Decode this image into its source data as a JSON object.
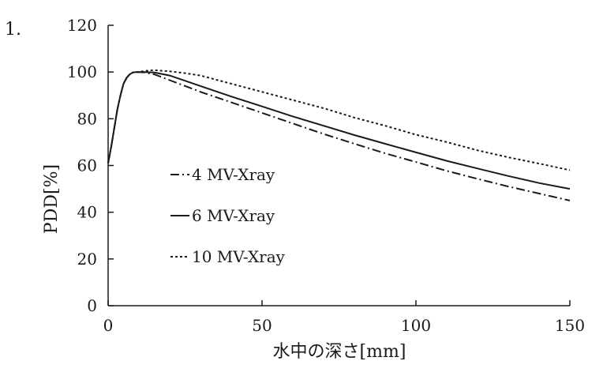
{
  "figure_number": "1.",
  "chart_data": {
    "type": "line",
    "xlabel": "水中の深さ[mm]",
    "ylabel": "PDD[%]",
    "xlim": [
      0,
      150
    ],
    "ylim": [
      0,
      120
    ],
    "xticks": [
      0,
      50,
      100,
      150
    ],
    "yticks": [
      0,
      20,
      40,
      60,
      80,
      100,
      120
    ],
    "grid": false,
    "legend_position": "left, inside plot",
    "series": [
      {
        "name": "4 MV-Xray",
        "style": "dash-dot",
        "color": "#1a1a1a",
        "x": [
          0,
          1,
          2,
          3,
          4,
          5,
          6,
          7,
          8,
          9,
          10,
          12,
          15,
          20,
          30,
          40,
          50,
          60,
          70,
          80,
          90,
          100,
          110,
          120,
          130,
          140,
          150
        ],
        "y": [
          61,
          68,
          76,
          84,
          90,
          95,
          97.5,
          99,
          99.8,
          100,
          100,
          99.8,
          99,
          96.5,
          91.5,
          87,
          82.5,
          78,
          73.5,
          69.3,
          65.2,
          61.5,
          57.7,
          54.3,
          51,
          48,
          45
        ]
      },
      {
        "name": "6 MV-Xray",
        "style": "solid",
        "color": "#1a1a1a",
        "x": [
          0,
          1,
          2,
          3,
          4,
          5,
          6,
          7,
          8,
          9,
          10,
          12,
          15,
          20,
          30,
          40,
          50,
          60,
          70,
          80,
          90,
          100,
          110,
          120,
          130,
          140,
          150
        ],
        "y": [
          61,
          68,
          76,
          84,
          90,
          95,
          97.5,
          99,
          99.8,
          100,
          100,
          100,
          99.8,
          98.5,
          94,
          89.5,
          85.3,
          81,
          77,
          73,
          69.3,
          65.6,
          62,
          58.7,
          55.5,
          52.5,
          50
        ]
      },
      {
        "name": "10 MV-Xray",
        "style": "dotted",
        "color": "#1a1a1a",
        "x": [
          0,
          1,
          2,
          3,
          4,
          5,
          6,
          7,
          8,
          9,
          10,
          12,
          15,
          20,
          25,
          30,
          40,
          50,
          60,
          70,
          80,
          90,
          100,
          110,
          120,
          130,
          140,
          150
        ],
        "y": [
          61,
          68,
          76,
          84,
          90,
          95,
          97.5,
          99,
          99.8,
          100,
          100,
          100.5,
          100.8,
          100.3,
          99.5,
          98.5,
          95,
          91.5,
          88,
          84.5,
          80.5,
          77,
          73.2,
          70,
          66.5,
          63.5,
          60.8,
          58
        ]
      }
    ]
  }
}
